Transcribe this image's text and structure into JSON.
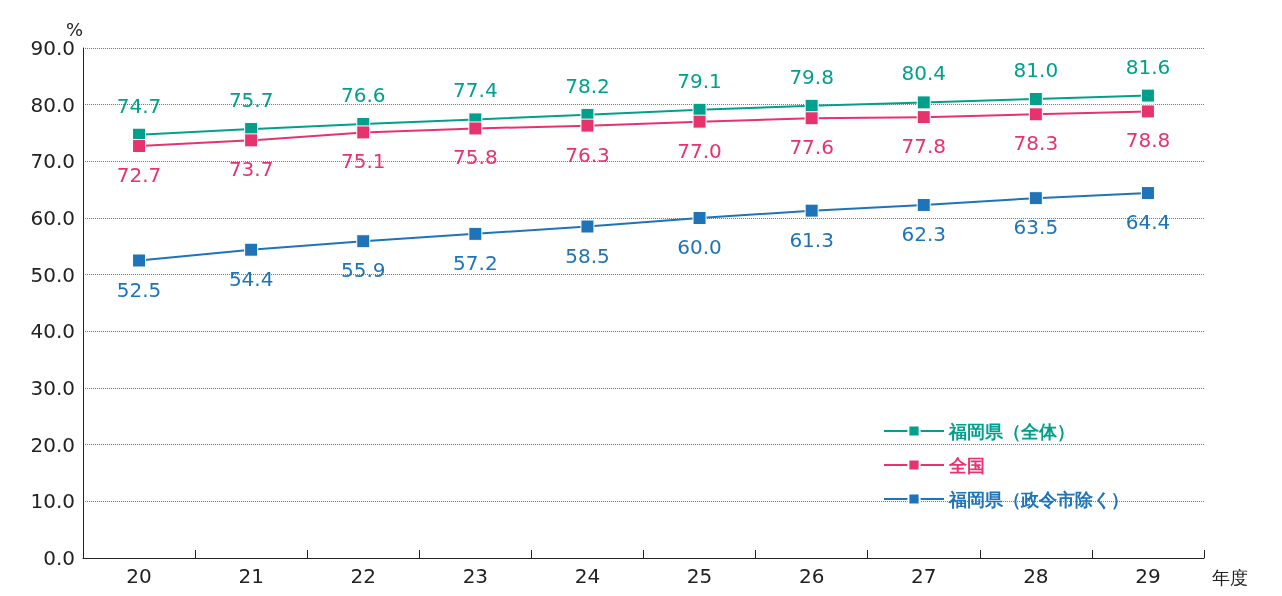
{
  "chart_data": {
    "type": "line",
    "ylabel": "%",
    "xlabel": "年度",
    "categories": [
      "20",
      "21",
      "22",
      "23",
      "24",
      "25",
      "26",
      "27",
      "28",
      "29"
    ],
    "ylim": [
      0,
      90
    ],
    "yticks": [
      {
        "value": 0,
        "label": "0.0"
      },
      {
        "value": 10,
        "label": "10.0"
      },
      {
        "value": 20,
        "label": "20.0"
      },
      {
        "value": 30,
        "label": "30.0"
      },
      {
        "value": 40,
        "label": "40.0"
      },
      {
        "value": 50,
        "label": "50.0"
      },
      {
        "value": 60,
        "label": "60.0"
      },
      {
        "value": 70,
        "label": "70.0"
      },
      {
        "value": 80,
        "label": "80.0"
      },
      {
        "value": 90,
        "label": "90.0"
      }
    ],
    "grid": "y",
    "legend": "bottom right",
    "marker": "square",
    "line_style": "solid",
    "series": [
      {
        "name": "福岡県（全体）",
        "color": "#00a08c",
        "values": [
          74.7,
          75.7,
          76.6,
          77.4,
          78.2,
          79.1,
          79.8,
          80.4,
          81.0,
          81.6
        ],
        "value_labels": [
          "74.7",
          "75.7",
          "76.6",
          "77.4",
          "78.2",
          "79.1",
          "79.8",
          "80.4",
          "81.0",
          "81.6"
        ]
      },
      {
        "name": "全国",
        "color": "#e6336e",
        "values": [
          72.7,
          73.7,
          75.1,
          75.8,
          76.3,
          77.0,
          77.6,
          77.8,
          78.3,
          78.8
        ],
        "value_labels": [
          "72.7",
          "73.7",
          "75.1",
          "75.8",
          "76.3",
          "77.0",
          "77.6",
          "77.8",
          "78.3",
          "78.8"
        ]
      },
      {
        "name": "福岡県（政令市除く）",
        "color": "#1e73b9",
        "values": [
          52.5,
          54.4,
          55.9,
          57.2,
          58.5,
          60.0,
          61.3,
          62.3,
          63.5,
          64.4
        ],
        "value_labels": [
          "52.5",
          "54.4",
          "55.9",
          "57.2",
          "58.5",
          "60.0",
          "61.3",
          "62.3",
          "63.5",
          "64.4"
        ]
      }
    ]
  }
}
